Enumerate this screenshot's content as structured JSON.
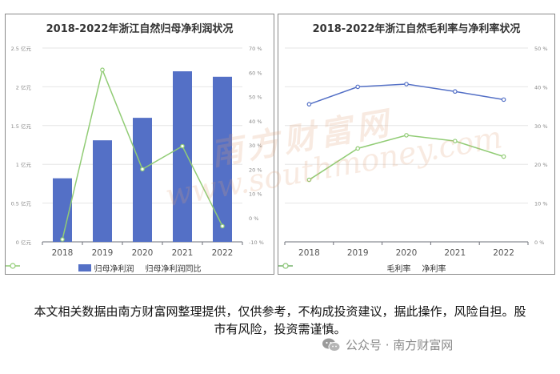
{
  "chart_data": [
    {
      "type": "bar",
      "title": "2018-2022年浙江自然归母净利润状况",
      "categories": [
        "2018",
        "2019",
        "2020",
        "2021",
        "2022"
      ],
      "ylim": [
        0,
        2.5
      ],
      "y2lim": [
        -10,
        70
      ],
      "y_ticks": [
        "0 亿元",
        "0.5 亿元",
        "1 亿元",
        "1.5 亿元",
        "2 亿元",
        "2.5 亿元"
      ],
      "y2_ticks": [
        "-10 %",
        "0 %",
        "10 %",
        "20 %",
        "30 %",
        "40 %",
        "50 %",
        "60 %",
        "70 %"
      ],
      "series": [
        {
          "name": "归母净利润",
          "kind": "bar",
          "axis": "left",
          "color": "#5470c6",
          "values": [
            0.82,
            1.31,
            1.6,
            2.2,
            2.13
          ]
        },
        {
          "name": "归母净利润同比",
          "kind": "line",
          "axis": "right",
          "color": "#91cc75",
          "values": [
            -9,
            61,
            20,
            29.5,
            -3.5
          ]
        }
      ],
      "legend": "bottom",
      "grid": "horizontal"
    },
    {
      "type": "line",
      "title": "2018-2022年浙江自然毛利率与净利率状况",
      "categories": [
        "2018",
        "2019",
        "2020",
        "2021",
        "2022"
      ],
      "y2lim": [
        0,
        50
      ],
      "y2_ticks": [
        "0 %",
        "10 %",
        "20 %",
        "30 %",
        "40 %",
        "50 %"
      ],
      "series": [
        {
          "name": "毛利率",
          "color": "#5470c6",
          "values": [
            35.5,
            40.0,
            40.7,
            38.8,
            36.7
          ]
        },
        {
          "name": "净利率",
          "color": "#91cc75",
          "values": [
            16.0,
            24.1,
            27.5,
            26.0,
            22.0
          ]
        }
      ],
      "legend": "bottom",
      "grid": "horizontal"
    }
  ],
  "watermark": {
    "cn": "南方财富网",
    "en": "www.southmoney.com"
  },
  "disclaimer": "本文相关数据由南方财富网整理提供，仅供参考，不构成投资建议，据此操作，风险自担。股市有风险，投资需谨慎。",
  "footer": {
    "label": "公众号 · 南方财富网",
    "icon": "wechat-icon"
  }
}
